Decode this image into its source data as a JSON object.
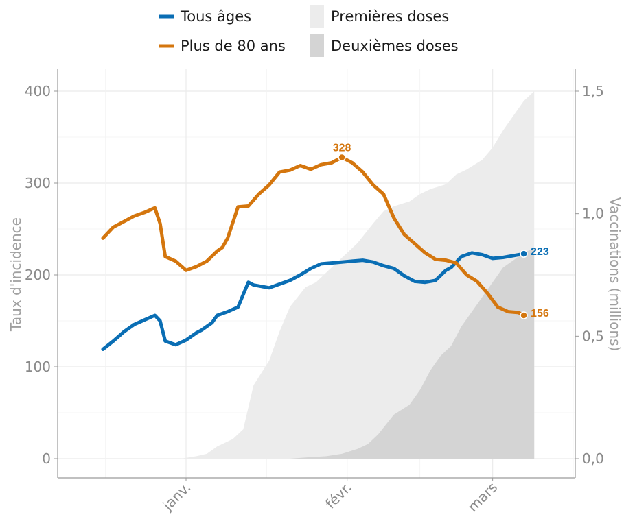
{
  "chart_data": {
    "type": "line",
    "x_tick_labels": [
      "janv.",
      "févr.",
      "mars"
    ],
    "y_left": {
      "label": "Taux d'incidence",
      "range": [
        0,
        400
      ],
      "ticks": [
        "0",
        "100",
        "200",
        "300",
        "400"
      ]
    },
    "y_right": {
      "label": "Vaccinations (millions)",
      "range": [
        0,
        1.5
      ],
      "ticks": [
        "0,0",
        "0,5",
        "1,0",
        "1,5"
      ]
    },
    "grid": true,
    "legend_position": "top",
    "legend": {
      "line_series": [
        {
          "name": "Tous âges",
          "color": "#0a6eb4"
        },
        {
          "name": "Plus de 80 ans",
          "color": "#d4760e"
        }
      ],
      "area_series": [
        {
          "name": "Premières doses",
          "color": "#ececec"
        },
        {
          "name": "Deuxièmes doses",
          "color": "#d4d4d4"
        }
      ]
    },
    "series": [
      {
        "name": "Tous âges",
        "axis": "left",
        "color": "#0a6eb4",
        "x": [
          "2020-12-16",
          "2020-12-18",
          "2020-12-20",
          "2020-12-22",
          "2020-12-24",
          "2020-12-26",
          "2020-12-27",
          "2020-12-28",
          "2020-12-30",
          "2021-01-01",
          "2021-01-03",
          "2021-01-04",
          "2021-01-06",
          "2021-01-07",
          "2021-01-09",
          "2021-01-11",
          "2021-01-13",
          "2021-01-14",
          "2021-01-15",
          "2021-01-17",
          "2021-01-19",
          "2021-01-21",
          "2021-01-23",
          "2021-01-25",
          "2021-01-27",
          "2021-01-29",
          "2021-01-31",
          "2021-02-02",
          "2021-02-04",
          "2021-02-06",
          "2021-02-08",
          "2021-02-10",
          "2021-02-12",
          "2021-02-14",
          "2021-02-16",
          "2021-02-18",
          "2021-02-20",
          "2021-02-21",
          "2021-02-23",
          "2021-02-25",
          "2021-02-27",
          "2021-03-01",
          "2021-03-03",
          "2021-03-05",
          "2021-03-07"
        ],
        "y": [
          119,
          128,
          138,
          146,
          151,
          156,
          150,
          128,
          124,
          129,
          137,
          140,
          148,
          156,
          160,
          165,
          192,
          189,
          188,
          186,
          190,
          194,
          200,
          207,
          212,
          213,
          214,
          215,
          216,
          214,
          210,
          207,
          199,
          193,
          192,
          194,
          205,
          208,
          220,
          224,
          222,
          218,
          219,
          221,
          223
        ],
        "end_label": "223"
      },
      {
        "name": "Plus de 80 ans",
        "axis": "left",
        "color": "#d4760e",
        "x": [
          "2020-12-16",
          "2020-12-18",
          "2020-12-20",
          "2020-12-22",
          "2020-12-24",
          "2020-12-26",
          "2020-12-27",
          "2020-12-28",
          "2020-12-30",
          "2021-01-01",
          "2021-01-03",
          "2021-01-05",
          "2021-01-07",
          "2021-01-08",
          "2021-01-09",
          "2021-01-11",
          "2021-01-13",
          "2021-01-15",
          "2021-01-17",
          "2021-01-19",
          "2021-01-21",
          "2021-01-23",
          "2021-01-25",
          "2021-01-27",
          "2021-01-29",
          "2021-01-31",
          "2021-02-02",
          "2021-02-04",
          "2021-02-06",
          "2021-02-08",
          "2021-02-10",
          "2021-02-12",
          "2021-02-14",
          "2021-02-16",
          "2021-02-18",
          "2021-02-20",
          "2021-02-22",
          "2021-02-24",
          "2021-02-26",
          "2021-02-28",
          "2021-03-02",
          "2021-03-04",
          "2021-03-06",
          "2021-03-07"
        ],
        "y": [
          240,
          252,
          258,
          264,
          268,
          273,
          256,
          220,
          215,
          205,
          209,
          215,
          226,
          230,
          240,
          274,
          275,
          288,
          298,
          312,
          314,
          319,
          315,
          320,
          322,
          328,
          322,
          312,
          298,
          288,
          262,
          244,
          234,
          224,
          217,
          216,
          213,
          200,
          193,
          180,
          165,
          160,
          159,
          156
        ],
        "end_label": "156",
        "peak": {
          "x": "2021-01-31",
          "y": 328,
          "label": "328"
        }
      },
      {
        "name": "Premières doses",
        "axis": "right",
        "type": "area",
        "unit": "millions",
        "x": [
          "2020-12-27",
          "2020-12-31",
          "2021-01-03",
          "2021-01-05",
          "2021-01-07",
          "2021-01-10",
          "2021-01-12",
          "2021-01-14",
          "2021-01-17",
          "2021-01-19",
          "2021-01-21",
          "2021-01-24",
          "2021-01-26",
          "2021-01-28",
          "2021-01-30",
          "2021-02-01",
          "2021-02-03",
          "2021-02-06",
          "2021-02-08",
          "2021-02-10",
          "2021-02-13",
          "2021-02-15",
          "2021-02-17",
          "2021-02-20",
          "2021-02-22",
          "2021-02-24",
          "2021-02-27",
          "2021-03-01",
          "2021-03-03",
          "2021-03-05",
          "2021-03-07",
          "2021-03-09"
        ],
        "y": [
          0.0,
          0.0,
          0.01,
          0.02,
          0.05,
          0.08,
          0.12,
          0.3,
          0.4,
          0.52,
          0.62,
          0.7,
          0.72,
          0.76,
          0.8,
          0.84,
          0.88,
          0.96,
          1.01,
          1.03,
          1.05,
          1.08,
          1.1,
          1.12,
          1.16,
          1.18,
          1.22,
          1.27,
          1.34,
          1.4,
          1.46,
          1.5
        ]
      },
      {
        "name": "Deuxièmes doses",
        "axis": "right",
        "type": "area",
        "unit": "millions",
        "x": [
          "2021-01-17",
          "2021-01-21",
          "2021-01-24",
          "2021-01-28",
          "2021-01-31",
          "2021-02-03",
          "2021-02-05",
          "2021-02-07",
          "2021-02-10",
          "2021-02-13",
          "2021-02-15",
          "2021-02-17",
          "2021-02-19",
          "2021-02-21",
          "2021-02-23",
          "2021-02-25",
          "2021-02-27",
          "2021-03-01",
          "2021-03-03",
          "2021-03-05",
          "2021-03-07",
          "2021-03-09"
        ],
        "y": [
          0.0,
          0.0,
          0.005,
          0.01,
          0.02,
          0.04,
          0.06,
          0.1,
          0.18,
          0.22,
          0.28,
          0.36,
          0.42,
          0.46,
          0.54,
          0.6,
          0.66,
          0.72,
          0.78,
          0.81,
          0.84,
          0.86
        ]
      }
    ]
  }
}
